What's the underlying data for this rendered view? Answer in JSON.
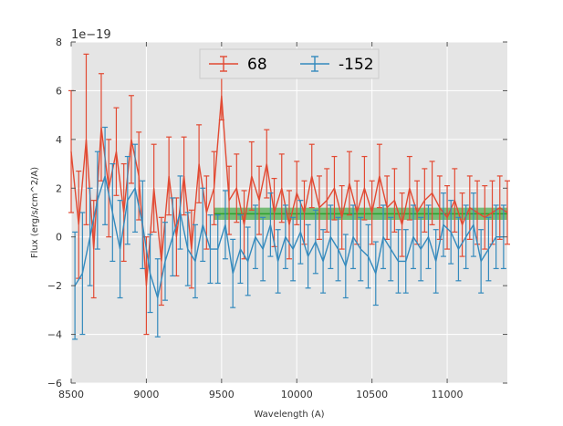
{
  "chart_data": {
    "type": "line",
    "xlabel": "Wavelength (A)",
    "ylabel": "Flux (erg/s/cm^2/A)",
    "y_offset_label": "1e−19",
    "xlim": [
      8500,
      11400
    ],
    "ylim": [
      -6,
      8
    ],
    "y_scale": 1e-19,
    "grid": true,
    "legend_position": "top-center",
    "x_ticks": [
      8500,
      9000,
      9500,
      10000,
      10500,
      11000
    ],
    "x_tick_labels": [
      "8500",
      "9000",
      "9500",
      "10000",
      "10500",
      "11000"
    ],
    "y_ticks": [
      -6,
      -4,
      -2,
      0,
      2,
      4,
      6,
      8
    ],
    "y_tick_labels": [
      "−6",
      "−4",
      "−2",
      "0",
      "2",
      "4",
      "6",
      "8"
    ],
    "colors": {
      "plot_background": "#e5e5e5",
      "series_68": "#e24a33",
      "series_neg152": "#348abd",
      "band_fill": "#2ca02c",
      "band_line": "#2ca02c"
    },
    "band": {
      "x_start": 9450,
      "x_end": 11400,
      "y_center": 0.95,
      "y_low": 0.7,
      "y_high": 1.2
    },
    "series": [
      {
        "name": "68",
        "color": "#e24a33",
        "x": [
          8500,
          8550,
          8600,
          8650,
          8700,
          8750,
          8800,
          8850,
          8900,
          8950,
          9000,
          9050,
          9100,
          9150,
          9200,
          9250,
          9300,
          9350,
          9400,
          9450,
          9500,
          9550,
          9600,
          9650,
          9700,
          9750,
          9800,
          9850,
          9900,
          9950,
          10000,
          10050,
          10100,
          10150,
          10200,
          10250,
          10300,
          10350,
          10400,
          10450,
          10500,
          10550,
          10600,
          10650,
          10700,
          10750,
          10800,
          10850,
          10900,
          10950,
          11000,
          11050,
          11100,
          11150,
          11200,
          11250,
          11300,
          11350,
          11400
        ],
        "y": [
          3.5,
          0.5,
          4.0,
          -0.5,
          4.5,
          2.0,
          3.5,
          1.0,
          4.0,
          2.5,
          -2.0,
          2.0,
          -1.0,
          2.5,
          0.0,
          2.5,
          -0.5,
          3.0,
          1.0,
          2.0,
          5.8,
          1.5,
          2.0,
          0.5,
          2.5,
          1.5,
          3.0,
          1.0,
          2.0,
          0.5,
          1.8,
          1.0,
          2.5,
          1.2,
          1.5,
          2.0,
          0.8,
          2.2,
          1.0,
          2.0,
          1.0,
          2.5,
          1.2,
          1.5,
          0.5,
          2.0,
          1.0,
          1.5,
          1.8,
          1.2,
          0.8,
          1.5,
          0.5,
          1.2,
          1.0,
          0.8,
          1.0,
          1.2,
          1.0
        ],
        "error": [
          2.5,
          2.2,
          3.5,
          2.0,
          2.2,
          2.0,
          1.8,
          2.0,
          1.8,
          1.8,
          2.0,
          1.8,
          1.8,
          1.6,
          1.6,
          1.6,
          1.6,
          1.6,
          1.5,
          1.5,
          1.0,
          1.4,
          1.4,
          1.4,
          1.4,
          1.4,
          1.4,
          1.4,
          1.4,
          1.4,
          1.3,
          1.3,
          1.3,
          1.3,
          1.3,
          1.3,
          1.3,
          1.3,
          1.3,
          1.3,
          1.3,
          1.3,
          1.3,
          1.3,
          1.3,
          1.3,
          1.3,
          1.3,
          1.3,
          1.3,
          1.3,
          1.3,
          1.3,
          1.3,
          1.3,
          1.3,
          1.3,
          1.3,
          1.3
        ]
      },
      {
        "name": "-152",
        "color": "#348abd",
        "x": [
          8525,
          8575,
          8625,
          8675,
          8725,
          8775,
          8825,
          8875,
          8925,
          8975,
          9025,
          9075,
          9125,
          9175,
          9225,
          9275,
          9325,
          9375,
          9425,
          9475,
          9525,
          9575,
          9625,
          9675,
          9725,
          9775,
          9825,
          9875,
          9925,
          9975,
          10025,
          10075,
          10125,
          10175,
          10225,
          10275,
          10325,
          10375,
          10425,
          10475,
          10525,
          10575,
          10625,
          10675,
          10725,
          10775,
          10825,
          10875,
          10925,
          10975,
          11025,
          11075,
          11125,
          11175,
          11225,
          11275,
          11325,
          11375
        ],
        "y": [
          -2.0,
          -1.5,
          0.0,
          1.5,
          2.5,
          1.0,
          -0.5,
          1.5,
          2.0,
          0.5,
          -1.5,
          -2.5,
          -1.0,
          0.0,
          1.0,
          -0.5,
          -1.0,
          0.5,
          -0.5,
          -0.5,
          0.5,
          -1.5,
          -0.5,
          -1.0,
          0.0,
          -0.5,
          0.5,
          -1.0,
          0.0,
          -0.5,
          0.2,
          -0.8,
          -0.2,
          -1.0,
          0.0,
          -0.5,
          -1.2,
          0.0,
          -0.5,
          -0.8,
          -1.5,
          0.0,
          -0.5,
          -1.0,
          -1.0,
          0.0,
          -0.5,
          0.0,
          -1.0,
          0.5,
          0.2,
          -0.5,
          0.0,
          0.5,
          -1.0,
          -0.5,
          0.0,
          0.0
        ],
        "error": [
          2.2,
          2.5,
          2.0,
          2.0,
          2.0,
          2.0,
          2.0,
          1.8,
          1.8,
          1.8,
          1.6,
          1.6,
          1.6,
          1.6,
          1.5,
          1.5,
          1.5,
          1.5,
          1.4,
          1.4,
          1.4,
          1.4,
          1.4,
          1.4,
          1.3,
          1.3,
          1.3,
          1.3,
          1.3,
          1.3,
          1.3,
          1.3,
          1.3,
          1.3,
          1.3,
          1.3,
          1.3,
          1.3,
          1.3,
          1.3,
          1.3,
          1.3,
          1.3,
          1.3,
          1.3,
          1.3,
          1.3,
          1.3,
          1.3,
          1.3,
          1.3,
          1.3,
          1.3,
          1.3,
          1.3,
          1.3,
          1.3,
          1.3
        ]
      }
    ]
  }
}
